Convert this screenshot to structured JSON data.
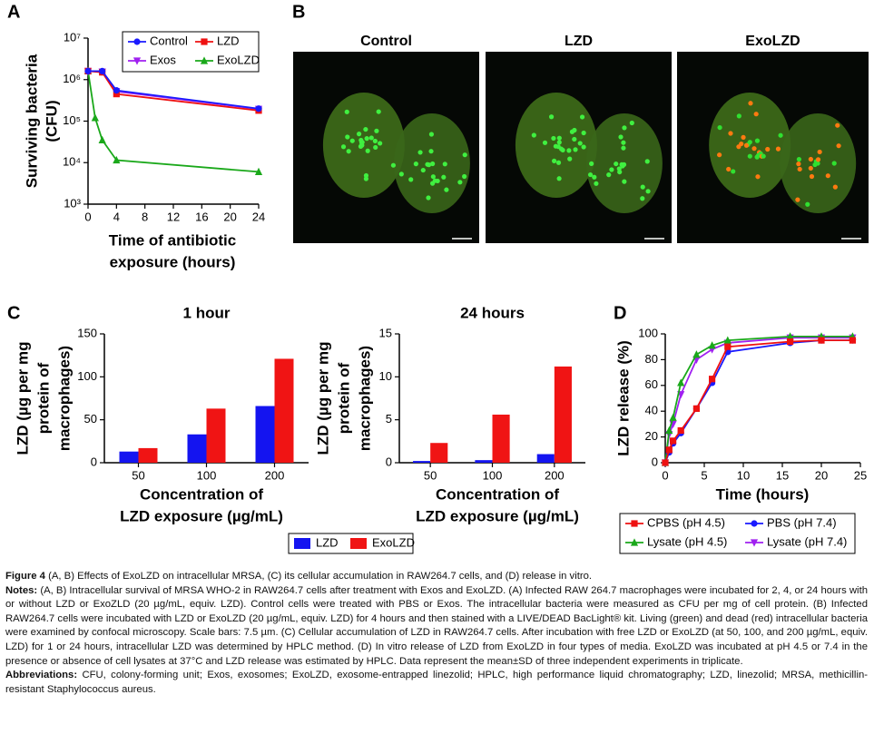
{
  "panel_labels": [
    "A",
    "B",
    "C",
    "D"
  ],
  "images": {
    "titles": [
      "Control",
      "LZD",
      "ExoLZD"
    ]
  },
  "chart_data": [
    {
      "type": "line",
      "log_y": true,
      "y_label": [
        "Surviving bacteria",
        "(CFU)"
      ],
      "x_label": [
        "Time of antibiotic",
        "exposure (hours)"
      ],
      "x": [
        0,
        2,
        4,
        24
      ],
      "series": [
        {
          "name": "Control",
          "color": "#1a1aff",
          "marker": "circle",
          "values": [
            1600000,
            1600000,
            550000,
            200000
          ]
        },
        {
          "name": "LZD",
          "color": "#ee1111",
          "marker": "square",
          "values": [
            1600000,
            1500000,
            450000,
            180000
          ]
        },
        {
          "name": "Exos",
          "color": "#a020f0",
          "marker": "triangle-down",
          "values": [
            1600000,
            1550000,
            520000,
            195000
          ]
        },
        {
          "name": "ExoLZD",
          "color": "#1aa81a",
          "marker": "triangle",
          "x": [
            0,
            1,
            2,
            4,
            24
          ],
          "values": [
            1600000,
            120000,
            35000,
            11500,
            6000
          ]
        }
      ],
      "xlim": [
        0,
        24
      ],
      "xticks": [
        0,
        4,
        8,
        12,
        16,
        20,
        24
      ],
      "ylim": [
        1000,
        10000000
      ],
      "yticks": [
        {
          "value": 1000,
          "label": "10³"
        },
        {
          "value": 10000,
          "label": "10⁴"
        },
        {
          "value": 100000,
          "label": "10⁵"
        },
        {
          "value": 1000000,
          "label": "10⁶"
        },
        {
          "value": 10000000,
          "label": "10⁷"
        }
      ],
      "legend": "upper right"
    },
    {
      "type": "bar",
      "title": "1 hour",
      "y_label": [
        "LZD (µg per mg",
        "protein of",
        "macrophages)"
      ],
      "x_label": [
        "Concentration of",
        "LZD exposure (µg/mL)"
      ],
      "categories": [
        "50",
        "100",
        "200"
      ],
      "series": [
        {
          "name": "LZD",
          "color": "#1414f0",
          "values": [
            13,
            33,
            66
          ]
        },
        {
          "name": "ExoLZD",
          "color": "#f01414",
          "values": [
            17,
            63,
            121
          ]
        }
      ],
      "ylim": [
        0,
        150
      ],
      "yticks": [
        0,
        50,
        100,
        150
      ],
      "legend": "bottom"
    },
    {
      "type": "bar",
      "title": "24 hours",
      "y_label": [
        "LZD (µg per mg",
        "protein of",
        "macrophages)"
      ],
      "x_label": [
        "Concentration of",
        "LZD exposure (µg/mL)"
      ],
      "categories": [
        "50",
        "100",
        "200"
      ],
      "series": [
        {
          "color": "#1414f0",
          "values": [
            0.2,
            0.3,
            1.0
          ]
        },
        {
          "color": "#f01414",
          "values": [
            2.3,
            5.6,
            11.2
          ]
        }
      ],
      "ylim": [
        0,
        15
      ],
      "yticks": [
        0,
        5,
        10,
        15
      ]
    },
    {
      "type": "line",
      "y_label": [
        "LZD release (%)"
      ],
      "x_label": [
        "Time (hours)"
      ],
      "x": [
        0,
        0.5,
        1,
        2,
        4,
        6,
        8,
        16,
        20,
        24
      ],
      "series": [
        {
          "name": "CPBS (pH 4.5)",
          "color": "#ee1111",
          "marker": "square",
          "values": [
            0,
            10,
            17,
            25,
            42,
            65,
            90,
            94,
            95,
            95
          ]
        },
        {
          "name": "PBS (pH 7.4)",
          "color": "#1a1aff",
          "marker": "circle",
          "values": [
            0,
            8,
            15,
            23,
            42,
            62,
            86,
            93,
            95,
            95
          ]
        },
        {
          "name": "Lysate (pH 4.5)",
          "color": "#1aa81a",
          "marker": "triangle",
          "values": [
            0,
            25,
            35,
            62,
            84,
            91,
            95,
            98,
            98,
            98
          ]
        },
        {
          "name": "Lysate (pH 7.4)",
          "color": "#a020f0",
          "marker": "triangle-down",
          "values": [
            0,
            22,
            30,
            53,
            80,
            88,
            93,
            97,
            97,
            97
          ]
        }
      ],
      "xlim": [
        0,
        25
      ],
      "xticks": [
        0,
        5,
        10,
        15,
        20,
        25
      ],
      "ylim": [
        0,
        100
      ],
      "yticks": [
        0,
        20,
        40,
        60,
        80,
        100
      ],
      "legend": "bottom"
    }
  ],
  "caption": {
    "figure_label": "Figure 4",
    "figure_text": " (A, B) Effects of ExoLZD on intracellular MRSA, (C) its cellular accumulation in RAW264.7 cells, and (D) release in vitro.",
    "notes_label": "Notes:",
    "notes_text": " (A, B) Intracellular survival of MRSA WHO-2 in RAW264.7 cells after treatment with Exos and ExoLZD. (A) Infected RAW 264.7 macrophages were incubated for 2, 4, or 24 hours with or without LZD or ExoZLD (20 µg/mL, equiv. LZD). Control cells were treated with PBS or Exos. The intracellular bacteria were measured as CFU per mg of cell protein. (B) Infected RAW264.7 cells were incubated with LZD or ExoLZD (20 µg/mL, equiv. LZD) for 4 hours and then stained with a LIVE/DEAD BacLight® kit. Living (green) and dead (red) intracellular bacteria were examined by confocal microscopy. Scale bars: 7.5 µm. (C) Cellular accumulation of LZD in RAW264.7 cells. After incubation with free LZD or ExoLZD (at 50, 100, and 200 µg/mL, equiv. LZD) for 1 or 24 hours, intracellular LZD was determined by HPLC method. (D) In vitro release of LZD from ExoLZD in four types of media. ExoLZD was incubated at pH 4.5 or 7.4 in the presence or absence of cell lysates at 37°C and LZD release was estimated by HPLC. Data represent the mean±SD of three independent experiments in triplicate.",
    "abbreviations_label": "Abbreviations:",
    "abbreviations_text": " CFU, colony-forming unit; Exos, exosomes; ExoLZD, exosome-entrapped linezolid; HPLC, high performance liquid chromatography; LZD, linezolid; MRSA, methicillin-resistant Staphylococcus aureus."
  }
}
